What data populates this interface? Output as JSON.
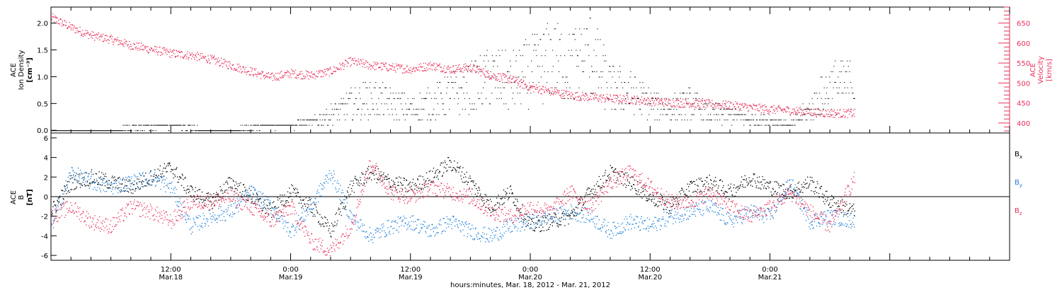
{
  "chart_data": [
    {
      "type": "scatter",
      "panel": "top",
      "ylabel": [
        "ACE",
        "Ion Density",
        "[cm⁻³]"
      ],
      "y2label": [
        "ACE",
        "Velocity",
        "[km/s]"
      ],
      "ylim": [
        -0.05,
        2.3
      ],
      "y2lim": [
        375,
        690
      ],
      "yticks": [
        "0.0",
        "0.5",
        "1.0",
        "1.5",
        "2.0"
      ],
      "y2ticks": [
        "400",
        "450",
        "500",
        "550",
        "600",
        "650"
      ],
      "xlim_hours": [
        0,
        96
      ],
      "data_end_hours": 80.5,
      "series": [
        {
          "name": "",
          "color": "#000000",
          "axis": "left",
          "x": [
            0,
            4,
            8,
            12,
            16,
            20,
            22,
            24,
            26,
            28,
            30,
            32,
            34,
            36,
            38,
            40,
            42,
            44,
            46,
            48,
            50,
            52,
            54,
            56,
            58,
            60,
            62,
            64,
            66,
            68,
            70,
            72,
            74,
            76,
            78,
            80.5
          ],
          "y": [
            0.0,
            0.0,
            0.05,
            0.1,
            0.0,
            0.05,
            0.1,
            0.1,
            0.15,
            0.3,
            0.5,
            0.6,
            0.5,
            0.4,
            0.5,
            0.7,
            0.8,
            1.0,
            0.9,
            1.1,
            1.3,
            1.2,
            1.4,
            0.8,
            0.7,
            0.5,
            0.4,
            0.5,
            0.3,
            0.3,
            0.2,
            0.2,
            0.1,
            0.4,
            0.8,
            0.9
          ]
        },
        {
          "name": "",
          "color": "#e8305a",
          "axis": "right",
          "x": [
            0,
            2,
            4,
            6,
            8,
            10,
            12,
            14,
            16,
            18,
            20,
            22,
            24,
            26,
            28,
            30,
            32,
            34,
            36,
            38,
            40,
            42,
            44,
            46,
            48,
            50,
            52,
            54,
            56,
            58,
            60,
            62,
            64,
            66,
            68,
            70,
            72,
            74,
            76,
            78,
            80.5
          ],
          "y": [
            665,
            640,
            620,
            610,
            595,
            585,
            575,
            570,
            560,
            545,
            530,
            515,
            525,
            520,
            530,
            555,
            545,
            540,
            535,
            545,
            535,
            540,
            520,
            510,
            490,
            480,
            470,
            465,
            462,
            460,
            455,
            452,
            450,
            448,
            445,
            440,
            435,
            432,
            428,
            425,
            425
          ]
        }
      ]
    },
    {
      "type": "scatter",
      "panel": "bottom",
      "ylabel": [
        "ACE",
        "B",
        "[nT]"
      ],
      "ylim": [
        -6.5,
        6.5
      ],
      "yticks": [
        "-6",
        "-4",
        "-2",
        "0",
        "2",
        "4",
        "6"
      ],
      "xlim_hours": [
        0,
        96
      ],
      "data_end_hours": 80.5,
      "series": [
        {
          "name": "B",
          "sub": "x",
          "color": "#000000",
          "x": [
            0,
            2,
            4,
            6,
            8,
            10,
            12,
            14,
            16,
            18,
            20,
            22,
            24,
            26,
            28,
            30,
            32,
            34,
            36,
            38,
            40,
            42,
            44,
            46,
            48,
            50,
            52,
            54,
            56,
            58,
            60,
            62,
            64,
            66,
            68,
            70,
            72,
            74,
            76,
            78,
            80.5
          ],
          "y": [
            -1.5,
            1.5,
            2.0,
            1.5,
            1.0,
            2.0,
            3.0,
            0.5,
            -0.5,
            1.5,
            0.0,
            -1.5,
            0.5,
            -1.0,
            -3.5,
            1.0,
            2.5,
            1.5,
            1.0,
            2.0,
            3.5,
            1.5,
            -1.0,
            0.5,
            -3.0,
            -2.5,
            -2.0,
            0.5,
            2.5,
            1.5,
            0.0,
            -1.0,
            1.0,
            1.5,
            0.5,
            2.0,
            1.0,
            0.5,
            1.5,
            -0.5,
            -1.5
          ]
        },
        {
          "name": "B",
          "sub": "y",
          "color": "#1f7fd8",
          "x": [
            0,
            2,
            4,
            6,
            8,
            10,
            12,
            14,
            16,
            18,
            20,
            22,
            24,
            26,
            28,
            30,
            32,
            34,
            36,
            38,
            40,
            42,
            44,
            46,
            48,
            50,
            52,
            54,
            56,
            58,
            60,
            62,
            64,
            66,
            68,
            70,
            72,
            74,
            76,
            78,
            80.5
          ],
          "y": [
            -3.0,
            2.5,
            1.5,
            1.0,
            1.5,
            2.0,
            1.0,
            -3.0,
            -2.0,
            -1.5,
            0.5,
            -1.0,
            -3.5,
            -1.0,
            2.5,
            -2.0,
            -4.0,
            -3.0,
            -2.5,
            -3.5,
            -2.5,
            -3.5,
            -4.0,
            -3.0,
            -2.5,
            -2.0,
            -1.5,
            -2.0,
            -3.5,
            -2.5,
            -3.0,
            -2.0,
            -1.5,
            -1.0,
            -2.5,
            -1.5,
            -2.0,
            1.5,
            -2.5,
            -2.0,
            -2.5
          ]
        },
        {
          "name": "B",
          "sub": "z",
          "color": "#e8305a",
          "x": [
            0,
            2,
            4,
            6,
            8,
            10,
            12,
            14,
            16,
            18,
            20,
            22,
            24,
            26,
            28,
            30,
            32,
            34,
            36,
            38,
            40,
            42,
            44,
            46,
            48,
            50,
            52,
            54,
            56,
            58,
            60,
            62,
            64,
            66,
            68,
            70,
            72,
            74,
            76,
            78,
            80.5
          ],
          "y": [
            -2.0,
            -1.0,
            -2.5,
            -3.0,
            -1.0,
            -1.5,
            -2.5,
            -0.5,
            -0.5,
            0.0,
            -1.0,
            -2.5,
            -1.0,
            -4.5,
            -5.5,
            -3.0,
            3.5,
            0.5,
            0.0,
            1.0,
            0.5,
            0.0,
            -1.5,
            -2.0,
            -1.0,
            -1.5,
            0.5,
            -1.0,
            1.5,
            2.5,
            1.0,
            -0.5,
            -0.5,
            0.5,
            -1.0,
            -2.0,
            -1.0,
            0.5,
            -1.5,
            -3.0,
            2.0
          ]
        }
      ]
    }
  ],
  "xaxis": {
    "ticks": [
      {
        "hour": 12,
        "time": "12:00",
        "date": "Mar.18"
      },
      {
        "hour": 24,
        "time": "0:00",
        "date": "Mar.19"
      },
      {
        "hour": 36,
        "time": "12:00",
        "date": "Mar.19"
      },
      {
        "hour": 48,
        "time": "0:00",
        "date": "Mar.20"
      },
      {
        "hour": 60,
        "time": "12:00",
        "date": "Mar.20"
      },
      {
        "hour": 72,
        "time": "0:00",
        "date": "Mar.21"
      }
    ],
    "title": "hours:minutes, Mar. 18, 2012 - Mar. 21, 2012"
  }
}
